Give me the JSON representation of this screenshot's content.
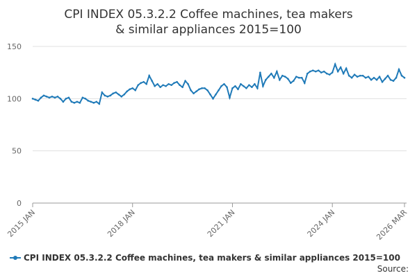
{
  "chart_data": {
    "type": "line",
    "title": "CPI INDEX 05.3.2.2 Coffee machines, tea makers & similar appliances 2015=100",
    "source": "Source:",
    "categories": [
      "2015 JAN",
      null,
      null,
      null,
      null,
      null,
      null,
      null,
      null,
      null,
      null,
      null,
      null,
      null,
      null,
      null,
      null,
      null,
      null,
      null,
      null,
      null,
      null,
      null,
      null,
      null,
      null,
      null,
      null,
      null,
      null,
      null,
      null,
      null,
      null,
      null,
      "2018 JAN",
      null,
      null,
      null,
      null,
      null,
      null,
      null,
      null,
      null,
      null,
      null,
      null,
      null,
      null,
      null,
      null,
      null,
      null,
      null,
      null,
      null,
      null,
      null,
      null,
      null,
      null,
      null,
      null,
      null,
      null,
      null,
      null,
      null,
      null,
      null,
      "2021 JAN",
      null,
      null,
      null,
      null,
      null,
      null,
      null,
      null,
      null,
      null,
      null,
      null,
      null,
      null,
      null,
      null,
      null,
      null,
      null,
      null,
      null,
      null,
      null,
      null,
      null,
      null,
      null,
      null,
      null,
      null,
      null,
      null,
      null,
      null,
      null,
      "2024 JAN",
      null,
      null,
      null,
      null,
      null,
      null,
      null,
      null,
      null,
      null,
      null,
      null,
      null,
      null,
      null,
      null,
      null,
      null,
      null,
      null,
      null,
      null,
      null,
      null,
      null,
      "2026 MAR"
    ],
    "series": [
      {
        "name": "CPI INDEX 05.3.2.2 Coffee machines, tea makers & similar appliances 2015=100",
        "color": "#1f7ab8",
        "values": [
          100,
          99,
          98,
          101,
          103,
          102,
          101,
          102,
          101,
          102,
          100,
          97,
          100,
          101,
          97,
          96,
          97,
          96,
          101,
          100,
          98,
          97,
          96,
          97,
          95,
          106,
          103,
          102,
          103,
          105,
          106,
          104,
          102,
          104,
          107,
          109,
          110,
          108,
          113,
          115,
          116,
          114,
          122,
          117,
          112,
          114,
          111,
          113,
          112,
          114,
          113,
          115,
          116,
          113,
          111,
          117,
          114,
          108,
          105,
          107,
          109,
          110,
          110,
          108,
          104,
          100,
          104,
          108,
          112,
          114,
          111,
          101,
          110,
          112,
          109,
          114,
          112,
          110,
          113,
          111,
          114,
          110,
          125,
          112,
          118,
          121,
          124,
          120,
          126,
          118,
          122,
          121,
          119,
          115,
          117,
          121,
          120,
          120,
          115,
          124,
          126,
          127,
          126,
          127,
          125,
          126,
          124,
          123,
          125,
          133,
          126,
          130,
          124,
          129,
          122,
          120,
          123,
          121,
          122,
          122,
          120,
          121,
          118,
          120,
          118,
          121,
          116,
          119,
          122,
          118,
          117,
          120,
          128,
          122,
          120
        ]
      }
    ],
    "ylim": [
      0,
      150
    ],
    "yticks": [
      0,
      50,
      100,
      150
    ],
    "grid": true
  }
}
